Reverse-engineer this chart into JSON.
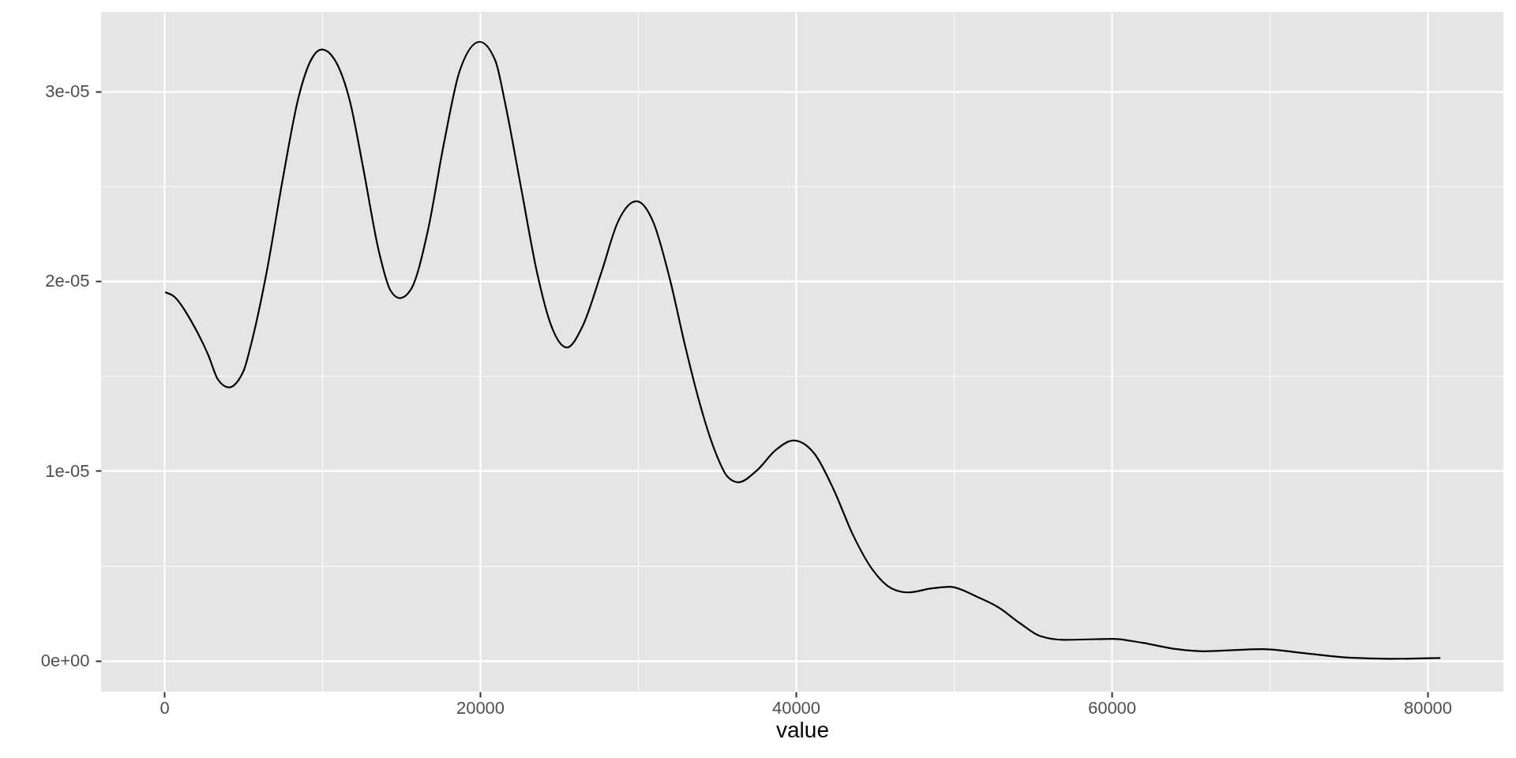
{
  "chart_data": {
    "type": "line",
    "xlabel": "value",
    "x": [
      100,
      600,
      1770,
      2790,
      3410,
      4080,
      5040,
      5450,
      6470,
      7490,
      8510,
      9330,
      9980,
      10760,
      11780,
      12590,
      13610,
      14330,
      14920,
      15650,
      16680,
      17700,
      18720,
      19970,
      20970,
      21580,
      22600,
      23620,
      24440,
      25500,
      26480,
      27700,
      28720,
      29900,
      30970,
      31990,
      33010,
      33830,
      34850,
      35660,
      36340,
      37500,
      38730,
      39850,
      41180,
      42400,
      43630,
      44850,
      46080,
      47100,
      48530,
      49750,
      51390,
      52850,
      54150,
      55460,
      56970,
      60050,
      61970,
      64130,
      65870,
      69550,
      72160,
      74980,
      77580,
      80770
    ],
    "series": [
      {
        "color": "#000000",
        "values": [
          1.94e-05,
          1.92e-05,
          1.78e-05,
          1.61e-05,
          1.48e-05,
          1.44e-05,
          1.53e-05,
          1.65e-05,
          2.04e-05,
          2.53e-05,
          2.97e-05,
          3.17e-05,
          3.22e-05,
          3.17e-05,
          2.94e-05,
          2.6e-05,
          2.15e-05,
          1.95e-05,
          1.91e-05,
          1.96e-05,
          2.26e-05,
          2.72e-05,
          3.11e-05,
          3.26e-05,
          3.16e-05,
          2.94e-05,
          2.49e-05,
          2.04e-05,
          1.78e-05,
          1.65e-05,
          1.76e-05,
          2.05e-05,
          2.31e-05,
          2.42e-05,
          2.31e-05,
          2.02e-05,
          1.65e-05,
          1.38e-05,
          1.11e-05,
          9.7e-06,
          9.4e-06,
          1e-05,
          1.11e-05,
          1.16e-05,
          1.09e-05,
          9e-06,
          6.6e-06,
          4.8e-06,
          3.8e-06,
          3.6e-06,
          3.8e-06,
          3.9e-06,
          3.4e-06,
          2.8e-06,
          2e-06,
          1.3e-06,
          1.1e-06,
          1.15e-06,
          9.4e-07,
          6.1e-07,
          5e-07,
          6.1e-07,
          4e-07,
          1.6e-07,
          1e-07,
          1.4e-07
        ]
      }
    ],
    "xlim": [
      -4000,
      84800
    ],
    "xticks": [
      0,
      {
        "value": 10000,
        "label": null
      },
      20000,
      {
        "value": 30000,
        "label": null
      },
      40000,
      {
        "value": 50000,
        "label": null
      },
      60000,
      {
        "value": 70000,
        "label": null
      },
      80000
    ],
    "ylim": [
      -1.63e-06,
      3.418e-05
    ],
    "yticks": [
      {
        "value": 0,
        "label": "0e+00"
      },
      {
        "value": 5e-06,
        "label": null
      },
      {
        "value": 1e-05,
        "label": "1e-05"
      },
      {
        "value": 1.5e-05,
        "label": null
      },
      {
        "value": 2e-05,
        "label": "2e-05"
      },
      {
        "value": 2.5e-05,
        "label": null
      },
      {
        "value": 3e-05,
        "label": "3e-05"
      }
    ],
    "grid": true
  }
}
